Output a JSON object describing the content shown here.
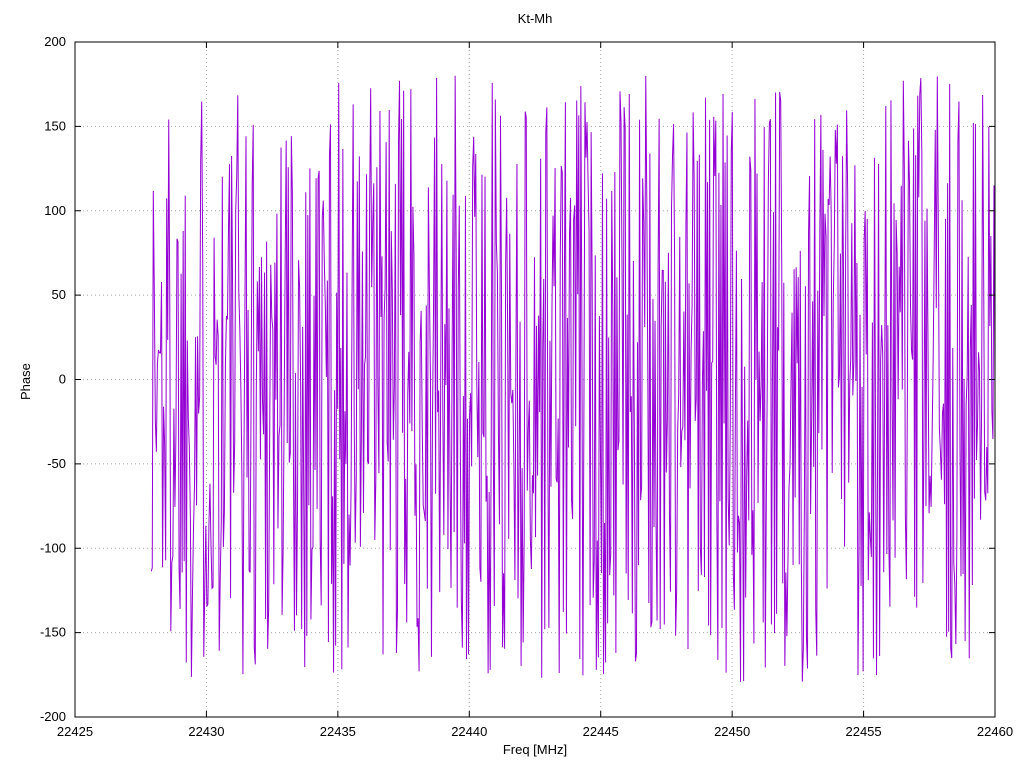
{
  "chart_data": {
    "type": "line",
    "title": "Kt-Mh",
    "xlabel": "Freq [MHz]",
    "ylabel": "Phase",
    "xlim": [
      22425,
      22460
    ],
    "ylim": [
      -200,
      200
    ],
    "x_ticks": [
      22425,
      22430,
      22435,
      22440,
      22445,
      22450,
      22455,
      22460
    ],
    "y_ticks": [
      -200,
      -150,
      -100,
      -50,
      0,
      50,
      100,
      150,
      200
    ],
    "grid": true,
    "grid_style": "dotted",
    "legend": "none",
    "background": "#ffffff",
    "border_color": "#000000",
    "grid_color": "#a6a6a6",
    "series": [
      {
        "name": "phase",
        "color": "#9400d3",
        "pattern": "wrapped-phase-noise",
        "x_start": 22427.9,
        "x_end": 22460,
        "points": 820,
        "y_min": -180,
        "y_max": 180,
        "seed": 1337
      }
    ]
  }
}
